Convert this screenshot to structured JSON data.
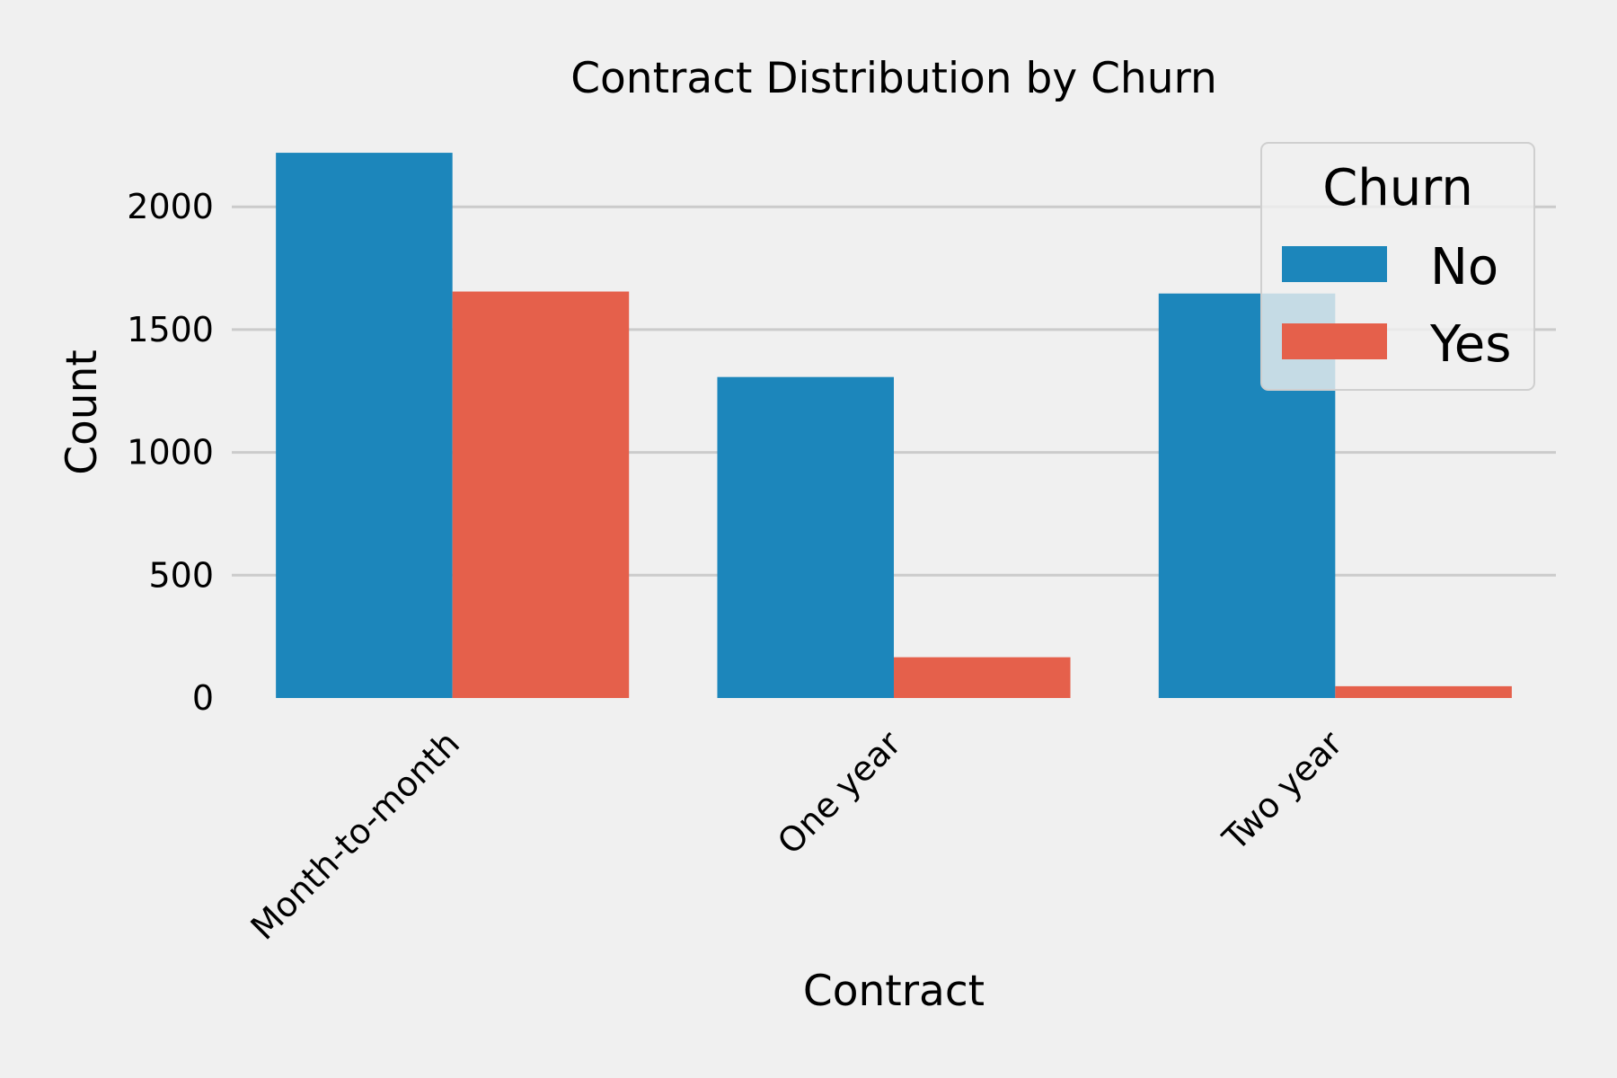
{
  "chart_data": {
    "type": "bar",
    "title": "Contract Distribution by Churn",
    "xlabel": "Contract",
    "ylabel": "Count",
    "categories": [
      "Month-to-month",
      "One year",
      "Two year"
    ],
    "series": [
      {
        "name": "No",
        "color": "#1c86bb",
        "values": [
          2220,
          1307,
          1647
        ]
      },
      {
        "name": "Yes",
        "color": "#e5604b",
        "values": [
          1655,
          166,
          48
        ]
      }
    ],
    "y_ticks": [
      0,
      500,
      1000,
      1500,
      2000
    ],
    "y_tick_labels": [
      "0",
      "500",
      "1000",
      "1500",
      "2000"
    ],
    "ylim": [
      0,
      2330
    ],
    "grid": "horizontal",
    "legend": {
      "title": "Churn",
      "placement": "top-right"
    },
    "colors": {
      "background": "#f0f0f0",
      "grid": "#cbcbcb"
    }
  }
}
